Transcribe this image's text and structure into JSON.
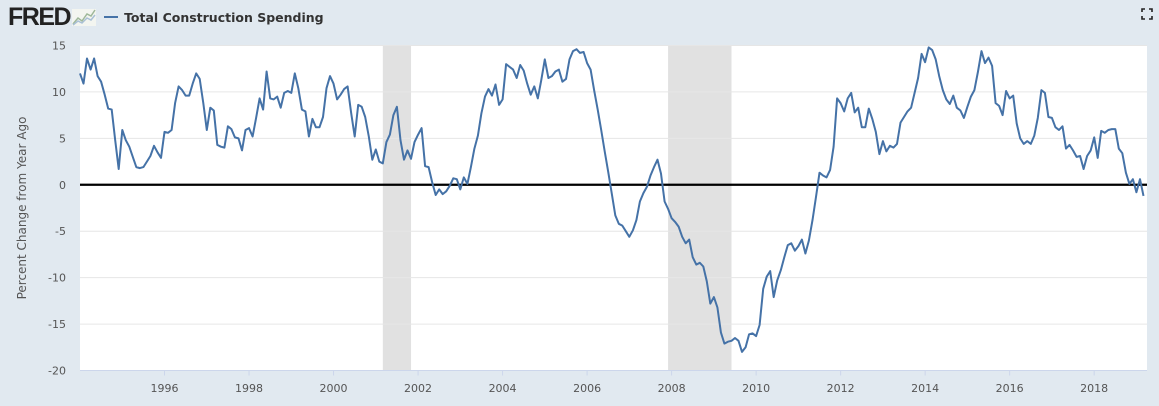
{
  "header": {
    "logo": "FRED",
    "logo_icon": "line-chart-icon",
    "fullscreen_icon": "fullscreen-icon"
  },
  "chart_data": {
    "type": "line",
    "title": "",
    "ylabel": "Percent Change from Year Ago",
    "xlabel": "",
    "ylim": [
      -20,
      15
    ],
    "yticks": [
      "15",
      "10",
      "5",
      "0",
      "-5",
      "-10",
      "-15",
      "-20"
    ],
    "xticks": [
      "1996",
      "1998",
      "2000",
      "2002",
      "2004",
      "2006",
      "2008",
      "2010",
      "2012",
      "2014",
      "2016",
      "2018"
    ],
    "xlim": [
      "1994-01",
      "2019-04"
    ],
    "grid": true,
    "zero_line": true,
    "legend_placement": "top-left",
    "frequency": "monthly",
    "recessions": [
      [
        "2001-03",
        "2001-11"
      ],
      [
        "2007-12",
        "2009-06"
      ]
    ],
    "colors": {
      "line": "#4572a7",
      "recession": "#e1e1e1",
      "zero": "#000000",
      "grid": "#e6e6e6"
    },
    "series": [
      {
        "name": "Total Construction Spending",
        "monthly_values_by_year": {
          "1994": [
            12.0,
            10.9,
            13.6,
            12.4,
            13.6,
            11.7,
            11.1,
            9.7,
            8.2,
            8.1,
            4.8,
            1.7
          ],
          "1995": [
            5.9,
            4.8,
            4.1,
            3.0,
            1.9,
            1.8,
            1.9,
            2.5,
            3.1,
            4.2,
            3.5,
            2.9
          ],
          "1996": [
            5.7,
            5.6,
            5.9,
            8.8,
            10.6,
            10.2,
            9.6,
            9.6,
            10.9,
            12.0,
            11.4,
            8.8
          ],
          "1997": [
            5.9,
            8.3,
            8.0,
            4.3,
            4.1,
            4.0,
            6.3,
            6.0,
            5.1,
            5.0,
            3.7,
            5.9
          ],
          "1998": [
            6.1,
            5.2,
            7.2,
            9.3,
            8.1,
            12.2,
            9.3,
            9.2,
            9.5,
            8.3,
            9.9,
            10.1
          ],
          "1999": [
            9.9,
            12.0,
            10.4,
            8.1,
            7.9,
            5.2,
            7.1,
            6.2,
            6.2,
            7.3,
            10.4,
            11.7
          ],
          "2000": [
            10.9,
            9.2,
            9.7,
            10.3,
            10.6,
            7.7,
            5.2,
            8.6,
            8.4,
            7.3,
            5.2,
            2.7
          ],
          "2001": [
            3.8,
            2.5,
            2.3,
            4.6,
            5.4,
            7.5,
            8.4,
            4.8,
            2.7,
            3.7,
            2.8,
            4.6
          ],
          "2002": [
            5.4,
            6.1,
            2.0,
            1.9,
            0.3,
            -1.1,
            -0.5,
            -1.0,
            -0.7,
            -0.1,
            0.7,
            0.6
          ],
          "2003": [
            -0.5,
            0.8,
            0.1,
            1.9,
            3.9,
            5.3,
            7.7,
            9.5,
            10.3,
            9.6,
            10.8,
            8.6
          ],
          "2004": [
            9.2,
            13.0,
            12.7,
            12.4,
            11.5,
            12.9,
            12.3,
            10.9,
            9.7,
            10.6,
            9.3,
            11.3
          ],
          "2005": [
            13.5,
            11.5,
            11.7,
            12.2,
            12.4,
            11.1,
            11.4,
            13.5,
            14.4,
            14.6,
            14.2,
            14.3
          ],
          "2006": [
            13.1,
            12.4,
            10.2,
            8.1,
            5.9,
            3.6,
            1.4,
            -0.9,
            -3.3,
            -4.2,
            -4.4,
            -5.0
          ],
          "2007": [
            -5.6,
            -4.9,
            -3.8,
            -1.8,
            -0.9,
            -0.2,
            1.0,
            1.9,
            2.7,
            1.2,
            -1.8,
            -2.6
          ],
          "2008": [
            -3.6,
            -4.0,
            -4.5,
            -5.6,
            -6.3,
            -5.9,
            -7.8,
            -8.6,
            -8.4,
            -8.8,
            -10.4,
            -12.8
          ],
          "2009": [
            -12.1,
            -13.2,
            -15.9,
            -17.1,
            -16.9,
            -16.8,
            -16.5,
            -16.8,
            -18.0,
            -17.5,
            -16.1,
            -16.0
          ],
          "2010": [
            -16.3,
            -15.1,
            -11.2,
            -9.9,
            -9.3,
            -12.1,
            -10.3,
            -9.2,
            -7.8,
            -6.5,
            -6.3,
            -7.1
          ],
          "2011": [
            -6.6,
            -5.9,
            -7.4,
            -6.0,
            -3.8,
            -1.3,
            1.3,
            1.0,
            0.8,
            1.6,
            4.1,
            9.3
          ],
          "2012": [
            8.8,
            7.9,
            9.3,
            9.9,
            7.8,
            8.3,
            6.2,
            6.2,
            8.2,
            7.1,
            5.7,
            3.3
          ],
          "2013": [
            4.7,
            3.6,
            4.2,
            4.0,
            4.4,
            6.7,
            7.3,
            7.9,
            8.3,
            9.9,
            11.5,
            14.1
          ],
          "2014": [
            13.2,
            14.8,
            14.5,
            13.5,
            11.7,
            10.2,
            9.2,
            8.7,
            9.6,
            8.3,
            8.0,
            7.2
          ],
          "2015": [
            8.4,
            9.5,
            10.2,
            12.2,
            14.4,
            13.1,
            13.7,
            12.8,
            8.8,
            8.5,
            7.5,
            10.1
          ],
          "2016": [
            9.3,
            9.6,
            6.6,
            5.0,
            4.4,
            4.7,
            4.4,
            5.3,
            7.2,
            10.2,
            9.9,
            7.3
          ],
          "2017": [
            7.2,
            6.2,
            5.9,
            6.3,
            3.9,
            4.3,
            3.7,
            3.0,
            3.1,
            1.7,
            3.1,
            3.7
          ],
          "2018": [
            5.1,
            2.9,
            5.8,
            5.6,
            5.9,
            6.0,
            6.0,
            3.9,
            3.4,
            1.3,
            0.1,
            0.6
          ],
          "2019": [
            -0.8,
            0.6,
            -1.2
          ]
        }
      }
    ]
  }
}
